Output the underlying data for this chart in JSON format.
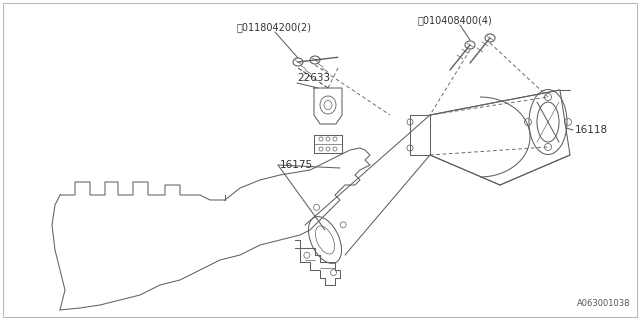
{
  "bg_color": "#ffffff",
  "line_color": "#606060",
  "text_color": "#333333",
  "fig_width": 6.4,
  "fig_height": 3.2,
  "dpi": 100,
  "diagram_id": "A063001038",
  "label_s": "Ⓢ011804200(2)",
  "label_b": "Ⓑ010408400(4)",
  "label_22633": "22633",
  "label_16118": "16118",
  "label_16175": "16175"
}
